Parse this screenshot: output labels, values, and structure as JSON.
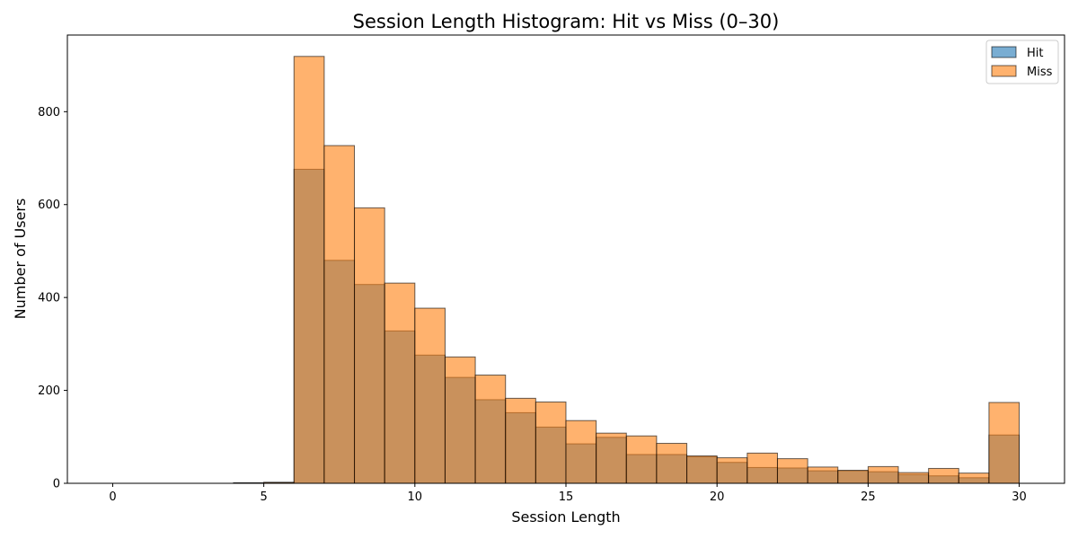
{
  "chart_data": {
    "type": "bar",
    "title": "Session Length Histogram: Hit vs Miss (0–30)",
    "xlabel": "Session Length",
    "ylabel": "Number of Users",
    "xlim": [
      -1.5,
      31.5
    ],
    "ylim": [
      0,
      965
    ],
    "x_ticks": [
      0,
      5,
      10,
      15,
      20,
      25,
      30
    ],
    "y_ticks": [
      0,
      200,
      400,
      600,
      800
    ],
    "bin_edges": [
      0,
      1,
      2,
      3,
      4,
      5,
      6,
      7,
      8,
      9,
      10,
      11,
      12,
      13,
      14,
      15,
      16,
      17,
      18,
      19,
      20,
      21,
      22,
      23,
      24,
      25,
      26,
      27,
      28,
      29,
      30
    ],
    "grid": false,
    "legend_position": "top-right",
    "series": [
      {
        "name": "Hit",
        "color": "#1f77b4",
        "opacity": 0.6,
        "values": [
          0,
          0,
          0,
          0,
          1,
          2,
          676,
          480,
          428,
          328,
          276,
          228,
          180,
          152,
          121,
          85,
          99,
          62,
          62,
          57,
          45,
          34,
          33,
          27,
          27,
          25,
          19,
          16,
          12,
          104
        ]
      },
      {
        "name": "Miss",
        "color": "#ff7f0e",
        "opacity": 0.6,
        "values": [
          0,
          0,
          0,
          0,
          1,
          2,
          919,
          727,
          593,
          431,
          377,
          272,
          233,
          183,
          175,
          135,
          108,
          102,
          86,
          59,
          55,
          65,
          53,
          35,
          28,
          36,
          23,
          32,
          22,
          174
        ]
      }
    ]
  }
}
